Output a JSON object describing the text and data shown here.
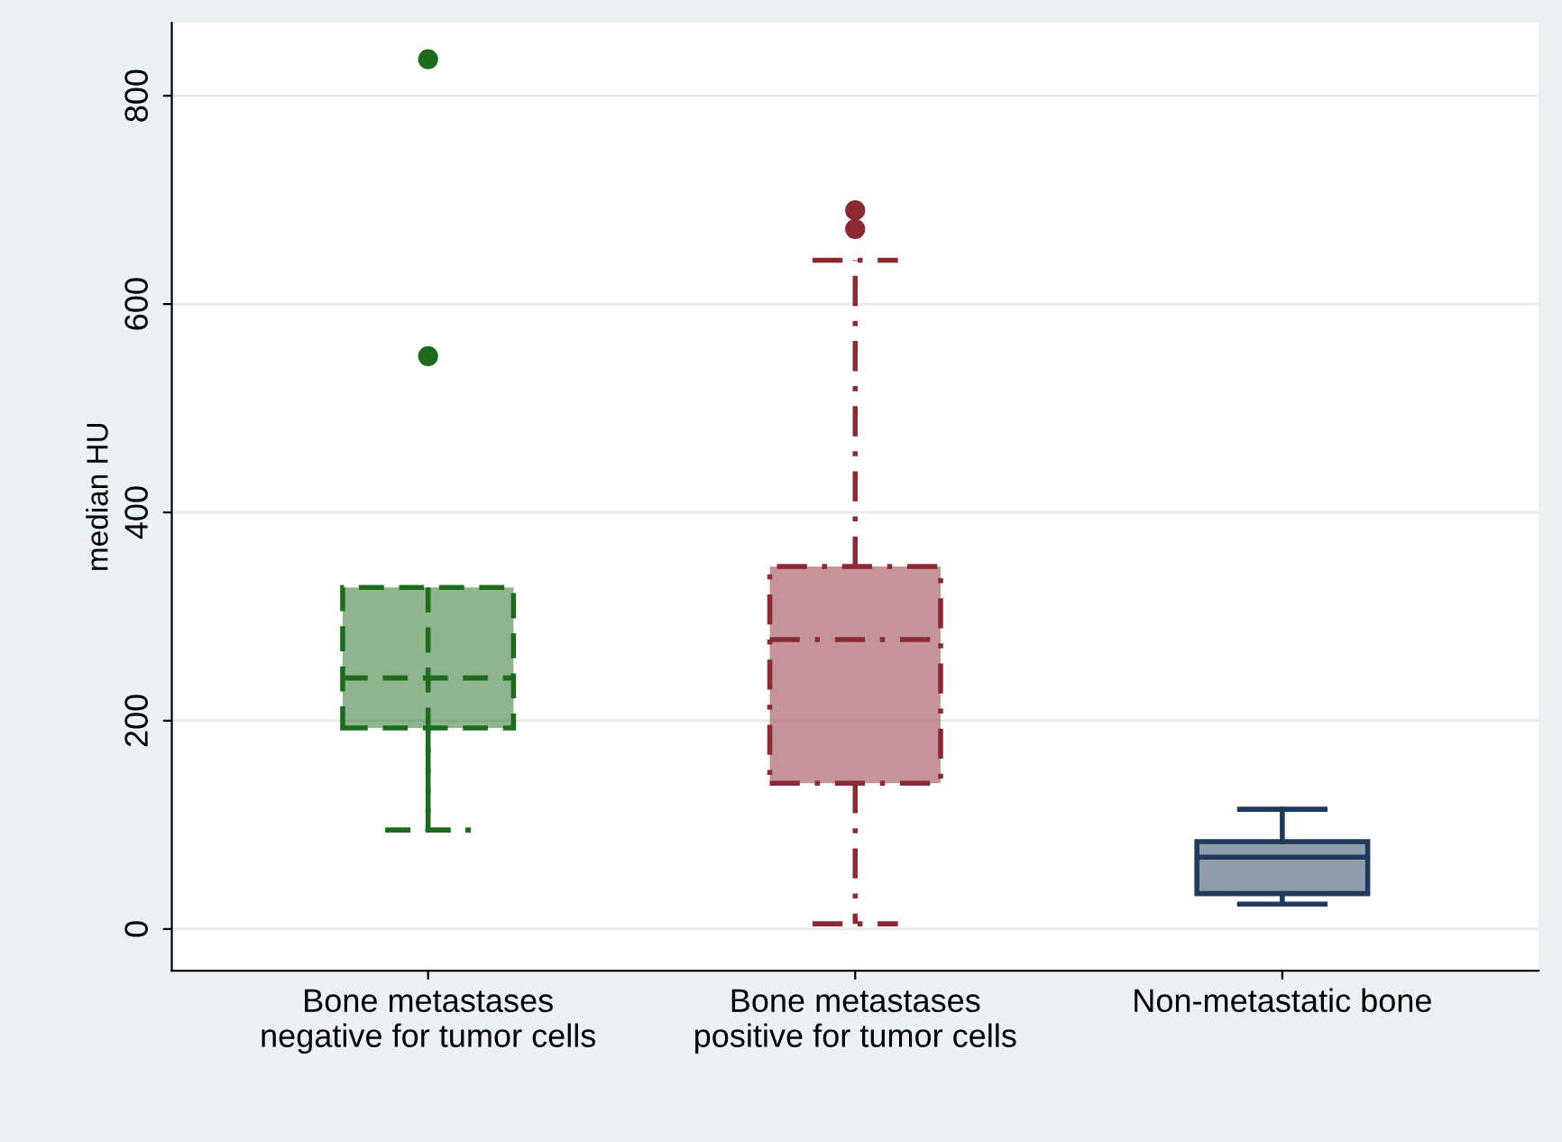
{
  "chart_data": {
    "type": "box",
    "ylabel": "median HU",
    "categories": [
      "Bone metastases\nnegative for tumor cells",
      "Bone metastases\npositive for tumor cells",
      "Non-metastatic bone"
    ],
    "ylim": [
      -40,
      870
    ],
    "yticks": [
      0,
      200,
      400,
      600,
      800
    ],
    "grid": "y",
    "series": [
      {
        "color": "#1e6b1e",
        "line_style": "dashed",
        "boxes": [
          {
            "low": 95,
            "q1": 193,
            "median": 241,
            "q3": 328,
            "high": 95,
            "outliers": [
              550,
              835
            ]
          },
          null,
          null
        ]
      },
      {
        "color": "#8b2a35",
        "line_style": "dashdot",
        "boxes": [
          null,
          {
            "low": 5,
            "q1": 140,
            "median": 278,
            "q3": 348,
            "high": 642,
            "outliers": [
              672,
              690
            ]
          },
          null
        ]
      },
      {
        "color": "#1f3a5a",
        "line_style": "solid",
        "boxes": [
          null,
          null,
          {
            "low": 24,
            "q1": 34,
            "median": 69,
            "q3": 84,
            "high": 115
          }
        ]
      }
    ]
  }
}
